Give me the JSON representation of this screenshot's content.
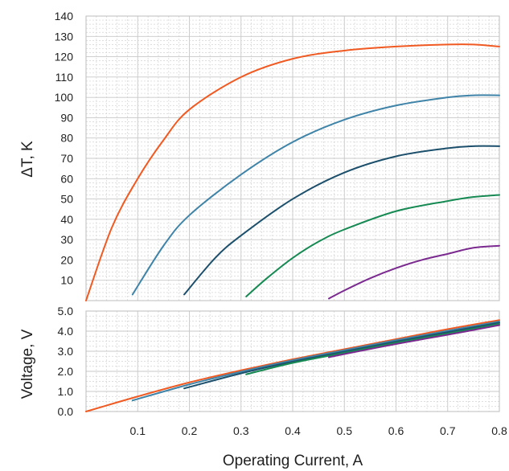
{
  "chart_data": [
    {
      "type": "line",
      "ylabel": "ΔT, K",
      "xlim": [
        0,
        0.8
      ],
      "ylim": [
        0,
        140
      ],
      "y_ticks": [
        10,
        20,
        30,
        40,
        50,
        60,
        70,
        80,
        90,
        100,
        110,
        120,
        130,
        140
      ],
      "grid": true,
      "series": [
        {
          "color": "#f05a22",
          "x": [
            0.0,
            0.05,
            0.1,
            0.15,
            0.2,
            0.3,
            0.4,
            0.5,
            0.6,
            0.7,
            0.75,
            0.8
          ],
          "y": [
            0,
            36,
            60,
            79,
            94,
            110,
            119,
            123,
            125,
            126,
            126,
            125
          ]
        },
        {
          "color": "#3f84a8",
          "x": [
            0.09,
            0.15,
            0.2,
            0.3,
            0.4,
            0.5,
            0.6,
            0.7,
            0.75,
            0.8
          ],
          "y": [
            3,
            27,
            42,
            62,
            78,
            89,
            96,
            100,
            101,
            101
          ]
        },
        {
          "color": "#1c4f6b",
          "x": [
            0.19,
            0.25,
            0.3,
            0.4,
            0.5,
            0.6,
            0.7,
            0.75,
            0.8
          ],
          "y": [
            3,
            21,
            32,
            50,
            63,
            71,
            75,
            76,
            76
          ]
        },
        {
          "color": "#178a54",
          "x": [
            0.31,
            0.35,
            0.4,
            0.45,
            0.5,
            0.6,
            0.7,
            0.75,
            0.8
          ],
          "y": [
            2,
            11,
            21,
            29,
            35,
            44,
            49,
            51,
            52
          ]
        },
        {
          "color": "#7b2a8f",
          "x": [
            0.47,
            0.5,
            0.55,
            0.6,
            0.65,
            0.7,
            0.75,
            0.8
          ],
          "y": [
            1,
            5,
            11,
            16,
            20,
            23,
            26,
            27
          ]
        }
      ]
    },
    {
      "type": "line",
      "xlabel": "Operating Current, A",
      "ylabel": "Voltage, V",
      "xlim": [
        0,
        0.8
      ],
      "ylim": [
        0,
        5
      ],
      "x_ticks": [
        0.1,
        0.2,
        0.3,
        0.4,
        0.5,
        0.6,
        0.7,
        0.8
      ],
      "y_ticks": [
        "0.0",
        "1.0",
        "2.0",
        "3.0",
        "4.0",
        "5.0"
      ],
      "grid": true,
      "series": [
        {
          "color": "#f05a22",
          "x": [
            0.0,
            0.1,
            0.2,
            0.3,
            0.4,
            0.5,
            0.6,
            0.7,
            0.8
          ],
          "y": [
            0.0,
            0.75,
            1.45,
            2.05,
            2.6,
            3.1,
            3.6,
            4.1,
            4.55
          ]
        },
        {
          "color": "#3f84a8",
          "x": [
            0.09,
            0.2,
            0.3,
            0.4,
            0.5,
            0.6,
            0.7,
            0.8
          ],
          "y": [
            0.55,
            1.35,
            1.98,
            2.55,
            3.05,
            3.55,
            4.02,
            4.48
          ]
        },
        {
          "color": "#1c4f6b",
          "x": [
            0.19,
            0.3,
            0.4,
            0.5,
            0.6,
            0.7,
            0.8
          ],
          "y": [
            1.15,
            1.9,
            2.48,
            2.98,
            3.48,
            3.95,
            4.42
          ]
        },
        {
          "color": "#178a54",
          "x": [
            0.31,
            0.4,
            0.5,
            0.6,
            0.7,
            0.8
          ],
          "y": [
            1.85,
            2.42,
            2.92,
            3.42,
            3.88,
            4.36
          ]
        },
        {
          "color": "#7b2a8f",
          "x": [
            0.47,
            0.5,
            0.6,
            0.7,
            0.8
          ],
          "y": [
            2.7,
            2.86,
            3.36,
            3.82,
            4.3
          ]
        }
      ]
    }
  ]
}
